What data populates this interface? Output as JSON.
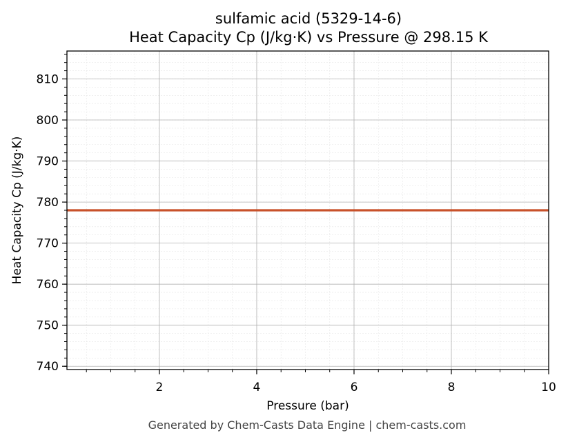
{
  "chart_data": {
    "type": "line",
    "title": "sulfamic acid (5329-14-6)",
    "subtitle": "Heat Capacity Cp (J/kg·K) vs Pressure @ 298.15 K",
    "xlabel": "Pressure (bar)",
    "ylabel": "Heat Capacity Cp (J/kg·K)",
    "xlim": [
      0.1,
      10
    ],
    "ylim": [
      739.2,
      816.8
    ],
    "x_ticks": [
      2,
      4,
      6,
      8,
      10
    ],
    "y_ticks": [
      740,
      750,
      760,
      770,
      780,
      790,
      800,
      810
    ],
    "grid": true,
    "series": [
      {
        "x": [
          0.1,
          10
        ],
        "y": [
          778,
          778
        ],
        "color": "#c8512a"
      }
    ]
  },
  "footer": "Generated by Chem-Casts Data Engine | chem-casts.com"
}
